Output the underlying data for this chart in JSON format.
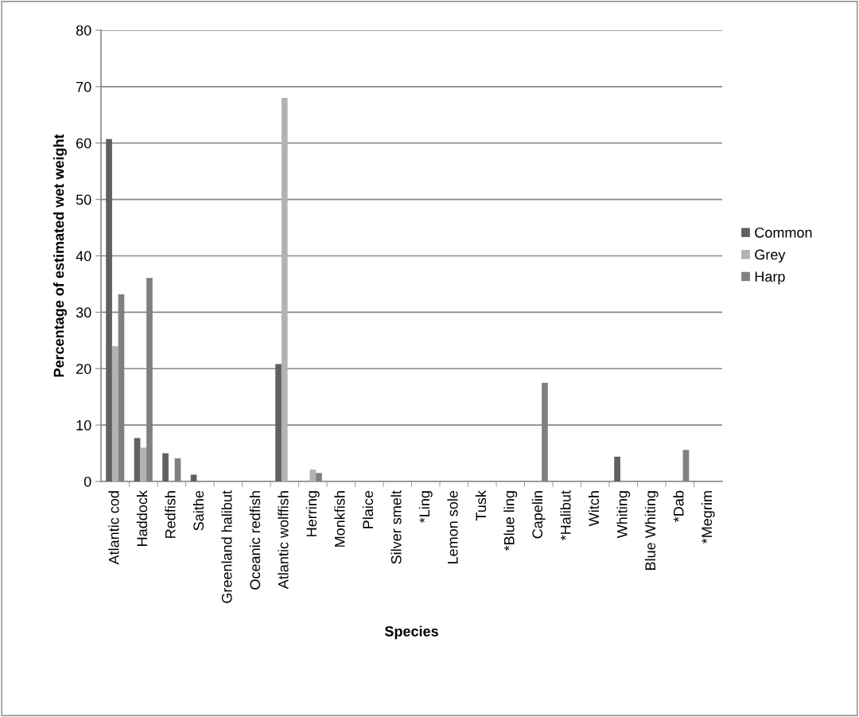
{
  "chart_data": {
    "type": "bar",
    "xlabel": "Species",
    "ylabel": "Percentage of estimated wet weight",
    "categories": [
      "Atlantic cod",
      "Haddock",
      "Redfish",
      "Saithe",
      "Greenland halibut",
      "Oceanic redfish",
      "Atlantic wolffish",
      "Herring",
      "Monkfish",
      "Plaice",
      "Silver smelt",
      "*Ling",
      "Lemon sole",
      "Tusk",
      "*Blue ling",
      "Capelin",
      "*Halibut",
      "Witch",
      "Whiting",
      "Blue Whiting",
      "*Dab",
      "*Megrim"
    ],
    "series": [
      {
        "name": "Common",
        "color": "#606060",
        "values": [
          60.7,
          7.7,
          5.0,
          1.2,
          0,
          0,
          20.8,
          0,
          0,
          0,
          0,
          0,
          0,
          0,
          0,
          0,
          0,
          0,
          4.4,
          0,
          0,
          0
        ]
      },
      {
        "name": "Grey",
        "color": "#b3b3b3",
        "values": [
          24.0,
          6.0,
          0,
          0,
          0,
          0,
          68.0,
          2.1,
          0,
          0,
          0,
          0,
          0,
          0,
          0,
          0,
          0,
          0,
          0,
          0,
          0,
          0
        ]
      },
      {
        "name": "Harp",
        "color": "#808080",
        "values": [
          33.2,
          36.1,
          4.1,
          0,
          0,
          0,
          0,
          1.5,
          0,
          0,
          0,
          0,
          0,
          0,
          0,
          17.5,
          0,
          0,
          0,
          0,
          5.6,
          0
        ]
      }
    ],
    "ylim": [
      0,
      80
    ],
    "yticks": [
      0,
      10,
      20,
      30,
      40,
      50,
      60,
      70,
      80
    ],
    "grid": "y",
    "legend": "right"
  }
}
